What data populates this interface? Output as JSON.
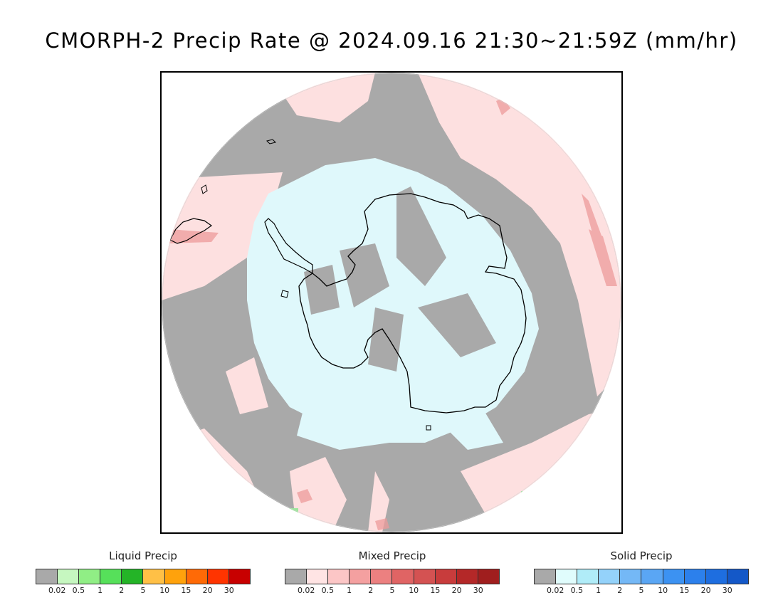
{
  "title": "CMORPH-2 Precip Rate @ 2024.09.16 21:30~21:59Z (mm/hr)",
  "map": {
    "projection": "south polar stereographic",
    "background_color": "#a9a9a9",
    "colors": {
      "mixed_light": "#fde0e0",
      "solid_light": "#dff8fb",
      "mixed_medium": "#ec9b9b",
      "liquid_light": "#9de79d",
      "coastline": "#000000"
    }
  },
  "legends": [
    {
      "title": "Liquid Precip",
      "colors": [
        "#a9a9a9",
        "#c6f7c0",
        "#90ee85",
        "#56e05a",
        "#24b427",
        "#ffc046",
        "#ffa20c",
        "#ff6a06",
        "#ff3400",
        "#c80000"
      ],
      "ticks": [
        "0.02",
        "0.5",
        "1",
        "2",
        "5",
        "10",
        "15",
        "20",
        "30"
      ]
    },
    {
      "title": "Mixed Precip",
      "colors": [
        "#a9a9a9",
        "#ffe4e4",
        "#fcc6c6",
        "#f4a0a0",
        "#ec8080",
        "#e06464",
        "#d45252",
        "#c83c3c",
        "#b42828",
        "#a01e1e"
      ],
      "ticks": [
        "0.02",
        "0.5",
        "1",
        "2",
        "5",
        "10",
        "15",
        "20",
        "30"
      ]
    },
    {
      "title": "Solid Precip",
      "colors": [
        "#a9a9a9",
        "#e0fcfc",
        "#b0ecf8",
        "#94d2fa",
        "#74b8f6",
        "#5aa6f4",
        "#3c92f2",
        "#2c80ec",
        "#1e6ee0",
        "#1458c8"
      ],
      "ticks": [
        "0.02",
        "0.5",
        "1",
        "2",
        "5",
        "10",
        "15",
        "20",
        "30"
      ]
    }
  ]
}
